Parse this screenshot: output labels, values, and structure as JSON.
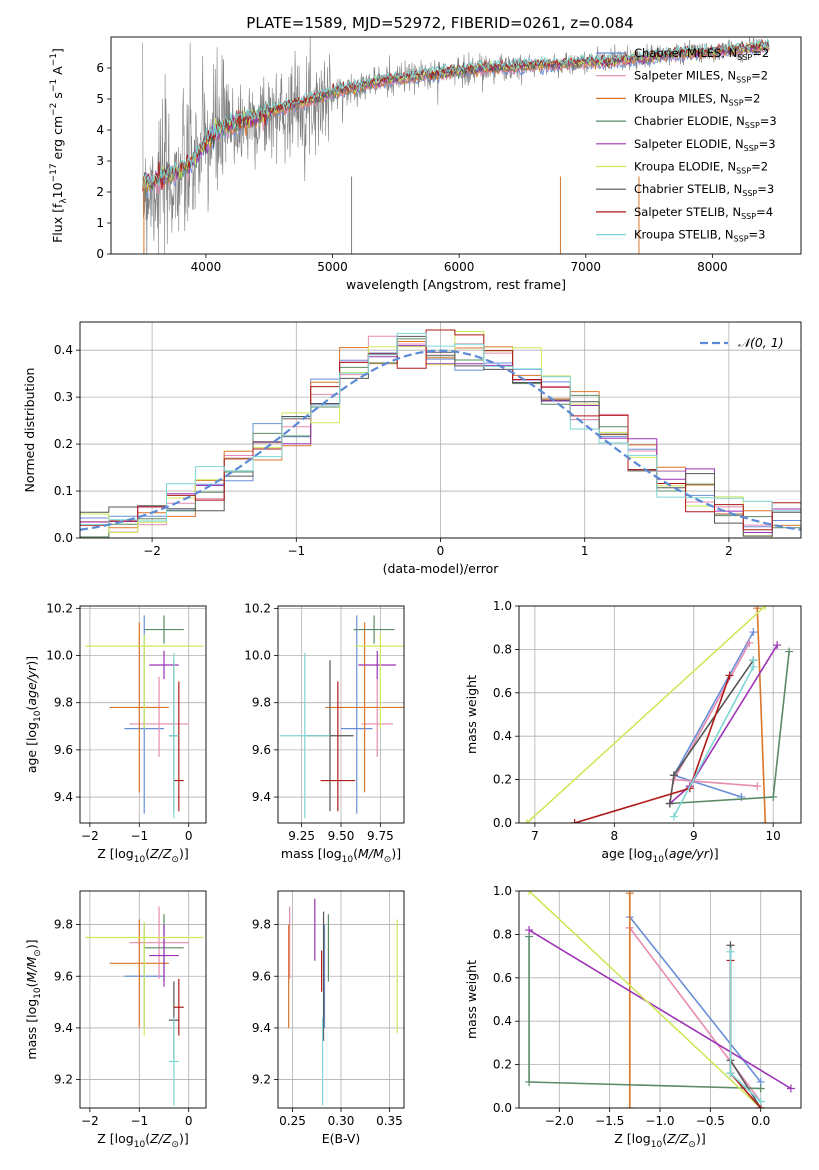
{
  "figure": {
    "title": "PLATE=1589, MJD=52972, FIBERID=0261, z=0.084",
    "colors": {
      "chabrier_miles": "#6a8fd8",
      "salpeter_miles": "#e58cb0",
      "kroupa_miles": "#d9762a",
      "chabrier_elodie": "#5a8a66",
      "salpeter_elodie": "#9d33b5",
      "kroupa_elodie": "#cfe85a",
      "chabrier_stelib": "#555555",
      "salpeter_stelib": "#b11a1a",
      "kroupa_stelib": "#7fd6d6",
      "data": "#808080",
      "normal": "#5b8ad6"
    }
  },
  "legend_spectrum": [
    {
      "label": "Chabrier MILES, N",
      "sub": "SSP",
      "tail": "=2",
      "color": "#6a8fd8"
    },
    {
      "label": "Salpeter MILES, N",
      "sub": "SSP",
      "tail": "=2",
      "color": "#e58cb0"
    },
    {
      "label": "Kroupa MILES, N",
      "sub": "SSP",
      "tail": "=2",
      "color": "#d9762a"
    },
    {
      "label": "Chabrier ELODIE, N",
      "sub": "SSP",
      "tail": "=3",
      "color": "#5a8a66"
    },
    {
      "label": "Salpeter ELODIE, N",
      "sub": "SSP",
      "tail": "=3",
      "color": "#9d33b5"
    },
    {
      "label": "Kroupa ELODIE, N",
      "sub": "SSP",
      "tail": "=2",
      "color": "#cfe85a"
    },
    {
      "label": "Chabrier STELIB, N",
      "sub": "SSP",
      "tail": "=3",
      "color": "#555555"
    },
    {
      "label": "Salpeter STELIB, N",
      "sub": "SSP",
      "tail": "=4",
      "color": "#b11a1a"
    },
    {
      "label": "Kroupa STELIB, N",
      "sub": "SSP",
      "tail": "=3",
      "color": "#7fd6d6"
    }
  ],
  "legend_hist": {
    "label": "𝒩(0, 1)"
  },
  "chart_data": [
    {
      "id": "spectrum",
      "type": "line",
      "xlabel": "wavelength [Angstrom, rest frame]",
      "ylabel": "Flux [f_λ 10^-17 erg cm^-2 s^-1 A^-1]",
      "xlim": [
        3250,
        8700
      ],
      "ylim": [
        0,
        7
      ],
      "xticks": [
        4000,
        5000,
        6000,
        7000,
        8000
      ],
      "yticks": [
        0,
        1,
        2,
        3,
        4,
        5,
        6
      ],
      "grid": false,
      "legend": "right",
      "series": [
        {
          "name": "data",
          "x": [
            3500,
            3700,
            3900,
            4000,
            4100,
            4300,
            4500,
            4700,
            4860,
            5000,
            5200,
            5400,
            5600,
            5800,
            6000,
            6200,
            6400,
            6600,
            6800,
            7000,
            7200,
            7400,
            7600,
            7800,
            8000,
            8200,
            8400
          ],
          "y": [
            2.1,
            2.3,
            2.9,
            3.6,
            3.9,
            4.2,
            4.5,
            4.8,
            4.9,
            5.2,
            5.4,
            5.6,
            5.7,
            5.8,
            5.9,
            6.0,
            6.0,
            6.1,
            6.1,
            6.2,
            6.3,
            6.3,
            6.4,
            6.5,
            6.5,
            6.6,
            6.7
          ]
        },
        {
          "name": "model",
          "x": [
            3500,
            3700,
            3900,
            4000,
            4100,
            4300,
            4500,
            4700,
            4860,
            5000,
            5200,
            5400,
            5600,
            5800,
            6000,
            6200,
            6400,
            6600,
            6800,
            7000,
            7200,
            7400,
            7600,
            7800,
            8000,
            8200,
            8400
          ],
          "y": [
            2.2,
            2.5,
            3.0,
            3.6,
            4.0,
            4.3,
            4.6,
            4.8,
            5.0,
            5.2,
            5.4,
            5.6,
            5.7,
            5.8,
            5.9,
            6.0,
            6.0,
            6.1,
            6.1,
            6.2,
            6.2,
            6.3,
            6.4,
            6.5,
            6.5,
            6.6,
            6.7
          ]
        }
      ]
    },
    {
      "id": "histogram",
      "type": "bar",
      "xlabel": "(data-model)/error",
      "ylabel": "Normed distribution",
      "xlim": [
        -2.5,
        2.5
      ],
      "ylim": [
        0,
        0.46
      ],
      "xticks": [
        -2,
        -1,
        0,
        1,
        2
      ],
      "yticks": [
        0.0,
        0.1,
        0.2,
        0.3,
        0.4
      ],
      "grid": true,
      "legend": "top-right",
      "bin_edges": [
        -2.5,
        -2.3,
        -2.1,
        -1.9,
        -1.7,
        -1.5,
        -1.3,
        -1.1,
        -0.9,
        -0.7,
        -0.5,
        -0.3,
        -0.1,
        0.1,
        0.3,
        0.5,
        0.7,
        0.9,
        1.1,
        1.3,
        1.5,
        1.7,
        1.9,
        2.1,
        2.3,
        2.5
      ],
      "values": [
        0.03,
        0.04,
        0.06,
        0.08,
        0.11,
        0.15,
        0.2,
        0.24,
        0.3,
        0.36,
        0.4,
        0.42,
        0.4,
        0.4,
        0.38,
        0.34,
        0.32,
        0.27,
        0.22,
        0.17,
        0.12,
        0.09,
        0.06,
        0.04,
        0.03
      ],
      "normal_curve": true
    },
    {
      "id": "age_vs_Z",
      "type": "scatter",
      "xlabel": "Z [log10(Z/Z☉)]",
      "ylabel": "age [log10(age/yr)]",
      "xlim": [
        -2.2,
        0.35
      ],
      "ylim": [
        9.29,
        10.21
      ],
      "xticks": [
        -2,
        -1,
        0
      ],
      "yticks": [
        9.4,
        9.6,
        9.8,
        10.0,
        10.2
      ],
      "grid": true,
      "points": [
        {
          "x": -0.9,
          "y": 9.69,
          "xerr": 0.4,
          "yerr": [
            0.36,
            0.48
          ],
          "series": "Chabrier MILES"
        },
        {
          "x": -0.6,
          "y": 9.71,
          "xerr": 0.6,
          "yerr": [
            0.14,
            0.2
          ],
          "series": "Salpeter MILES"
        },
        {
          "x": -1.0,
          "y": 9.78,
          "xerr": 0.6,
          "yerr": [
            0.36,
            0.36
          ],
          "series": "Kroupa MILES"
        },
        {
          "x": -0.5,
          "y": 10.11,
          "xerr": 0.4,
          "yerr": [
            0.06,
            0.06
          ],
          "series": "Chabrier ELODIE"
        },
        {
          "x": -0.5,
          "y": 9.96,
          "xerr": 0.3,
          "yerr": [
            0.06,
            0.06
          ],
          "series": "Salpeter ELODIE"
        },
        {
          "x": -0.9,
          "y": 10.04,
          "xerr": 1.2,
          "yerr": [
            0.35,
            0.05
          ],
          "series": "Kroupa ELODIE"
        },
        {
          "x": -0.3,
          "y": 9.66,
          "xerr": 0.1,
          "yerr": [
            0.32,
            0.32
          ],
          "series": "Chabrier STELIB"
        },
        {
          "x": -0.2,
          "y": 9.47,
          "xerr": 0.1,
          "yerr": [
            0.13,
            0.42
          ],
          "series": "Salpeter STELIB"
        },
        {
          "x": -0.3,
          "y": 9.66,
          "xerr": 0.1,
          "yerr": [
            0.35,
            0.35
          ],
          "series": "Kroupa STELIB"
        }
      ]
    },
    {
      "id": "age_vs_mass",
      "type": "scatter",
      "xlabel": "mass [log10(M/M☉)]",
      "ylabel": "",
      "xlim": [
        9.1,
        9.9
      ],
      "ylim": [
        9.29,
        10.21
      ],
      "xticks": [
        9.25,
        9.5,
        9.75
      ],
      "yticks": [
        9.4,
        9.6,
        9.8,
        10.0,
        10.2
      ],
      "grid": true,
      "points": [
        {
          "x": 9.6,
          "y": 9.69,
          "xerr": 0.1,
          "yerr": [
            0.36,
            0.48
          ],
          "series": "Chabrier MILES"
        },
        {
          "x": 9.73,
          "y": 9.71,
          "xerr": 0.1,
          "yerr": [
            0.14,
            0.2
          ],
          "series": "Salpeter MILES"
        },
        {
          "x": 9.65,
          "y": 9.78,
          "xerr": 0.25,
          "yerr": [
            0.36,
            0.36
          ],
          "series": "Kroupa MILES"
        },
        {
          "x": 9.71,
          "y": 10.11,
          "xerr": 0.13,
          "yerr": [
            0.06,
            0.06
          ],
          "series": "Chabrier ELODIE"
        },
        {
          "x": 9.73,
          "y": 9.96,
          "xerr": 0.12,
          "yerr": [
            0.06,
            0.06
          ],
          "series": "Salpeter ELODIE"
        },
        {
          "x": 9.75,
          "y": 10.04,
          "xerr": 0.16,
          "yerr": [
            0.35,
            0.05
          ],
          "series": "Kroupa ELODIE"
        },
        {
          "x": 9.43,
          "y": 9.66,
          "xerr": 0.15,
          "yerr": [
            0.32,
            0.32
          ],
          "series": "Chabrier STELIB"
        },
        {
          "x": 9.48,
          "y": 9.47,
          "xerr": 0.11,
          "yerr": [
            0.13,
            0.42
          ],
          "series": "Salpeter STELIB"
        },
        {
          "x": 9.27,
          "y": 9.66,
          "xerr": 0.16,
          "yerr": [
            0.35,
            0.35
          ],
          "series": "Kroupa STELIB"
        }
      ]
    },
    {
      "id": "mass_weight_vs_age",
      "type": "line",
      "xlabel": "age [log10(age/yr)]",
      "ylabel": "mass weight",
      "xlim": [
        6.8,
        10.35
      ],
      "ylim": [
        0,
        1
      ],
      "xticks": [
        7,
        8,
        9,
        10
      ],
      "yticks": [
        0.0,
        0.2,
        0.4,
        0.6,
        0.8,
        1.0
      ],
      "grid": true,
      "series": [
        {
          "name": "Chabrier MILES",
          "x": [
            9.6,
            8.75,
            9.75
          ],
          "y": [
            0.12,
            0.22,
            0.88
          ]
        },
        {
          "name": "Salpeter MILES",
          "x": [
            9.8,
            8.75,
            9.7
          ],
          "y": [
            0.17,
            0.2,
            0.83
          ]
        },
        {
          "name": "Kroupa MILES",
          "x": [
            9.9,
            9.8
          ],
          "y": [
            0.0,
            0.99
          ]
        },
        {
          "name": "Chabrier ELODIE",
          "x": [
            8.7,
            10.0,
            10.2
          ],
          "y": [
            0.09,
            0.12,
            0.79
          ]
        },
        {
          "name": "Salpeter ELODIE",
          "x": [
            8.7,
            8.95,
            10.05
          ],
          "y": [
            0.09,
            0.17,
            0.82
          ]
        },
        {
          "name": "Kroupa ELODIE",
          "x": [
            6.9,
            9.9
          ],
          "y": [
            0.0,
            1.0
          ]
        },
        {
          "name": "Chabrier STELIB",
          "x": [
            8.7,
            8.75,
            9.75
          ],
          "y": [
            0.09,
            0.22,
            0.75
          ]
        },
        {
          "name": "Salpeter STELIB",
          "x": [
            7.5,
            8.95,
            9.45
          ],
          "y": [
            0.0,
            0.16,
            0.68
          ]
        },
        {
          "name": "Kroupa STELIB",
          "x": [
            8.75,
            9.75,
            9.75
          ],
          "y": [
            0.03,
            0.72,
            0.75
          ]
        }
      ]
    },
    {
      "id": "mass_vs_Z",
      "type": "scatter",
      "xlabel": "Z [log10(Z/Z☉)]",
      "ylabel": "mass [log10(M/M☉)]",
      "xlim": [
        -2.2,
        0.35
      ],
      "ylim": [
        9.09,
        9.93
      ],
      "xticks": [
        -2,
        -1,
        0
      ],
      "yticks": [
        9.2,
        9.4,
        9.6,
        9.8
      ],
      "grid": true,
      "points": [
        {
          "x": -0.9,
          "y": 9.6,
          "xerr": 0.4,
          "yerr": [
            0.2,
            0.2
          ],
          "series": "Chabrier MILES"
        },
        {
          "x": -0.6,
          "y": 9.73,
          "xerr": 0.6,
          "yerr": [
            0.14,
            0.14
          ],
          "series": "Salpeter MILES"
        },
        {
          "x": -1.0,
          "y": 9.65,
          "xerr": 0.6,
          "yerr": [
            0.25,
            0.17
          ],
          "series": "Kroupa MILES"
        },
        {
          "x": -0.5,
          "y": 9.71,
          "xerr": 0.4,
          "yerr": [
            0.13,
            0.13
          ],
          "series": "Chabrier ELODIE"
        },
        {
          "x": -0.5,
          "y": 9.68,
          "xerr": 0.3,
          "yerr": [
            0.12,
            0.12
          ],
          "series": "Salpeter ELODIE"
        },
        {
          "x": -0.9,
          "y": 9.75,
          "xerr": 1.2,
          "yerr": [
            0.38,
            0.06
          ],
          "series": "Kroupa ELODIE"
        },
        {
          "x": -0.3,
          "y": 9.43,
          "xerr": 0.1,
          "yerr": [
            0.15,
            0.15
          ],
          "series": "Chabrier STELIB"
        },
        {
          "x": -0.2,
          "y": 9.48,
          "xerr": 0.1,
          "yerr": [
            0.11,
            0.11
          ],
          "series": "Salpeter STELIB"
        },
        {
          "x": -0.3,
          "y": 9.27,
          "xerr": 0.1,
          "yerr": [
            0.17,
            0.17
          ],
          "series": "Kroupa STELIB"
        }
      ]
    },
    {
      "id": "mass_vs_EBV",
      "type": "scatter",
      "xlabel": "E(B-V)",
      "ylabel": "",
      "xlim": [
        0.235,
        0.365
      ],
      "ylim": [
        9.09,
        9.93
      ],
      "xticks": [
        0.25,
        0.3,
        0.35
      ],
      "yticks": [
        9.2,
        9.4,
        9.6,
        9.8
      ],
      "grid": true,
      "points": [
        {
          "x": 0.283,
          "y": 9.6,
          "yerr": [
            0.2,
            0.2
          ],
          "series": "Chabrier MILES"
        },
        {
          "x": 0.247,
          "y": 9.73,
          "yerr": [
            0.14,
            0.14
          ],
          "series": "Salpeter MILES"
        },
        {
          "x": 0.246,
          "y": 9.6,
          "yerr": [
            0.2,
            0.2
          ],
          "series": "Kroupa MILES"
        },
        {
          "x": 0.287,
          "y": 9.71,
          "yerr": [
            0.13,
            0.13
          ],
          "series": "Chabrier ELODIE"
        },
        {
          "x": 0.273,
          "y": 9.78,
          "yerr": [
            0.12,
            0.12
          ],
          "series": "Salpeter ELODIE"
        },
        {
          "x": 0.358,
          "y": 9.6,
          "yerr": [
            0.22,
            0.22
          ],
          "series": "Kroupa ELODIE"
        },
        {
          "x": 0.282,
          "y": 9.6,
          "yerr": [
            0.25,
            0.25
          ],
          "series": "Chabrier STELIB"
        },
        {
          "x": 0.28,
          "y": 9.62,
          "yerr": [
            0.08,
            0.08
          ],
          "series": "Salpeter STELIB"
        },
        {
          "x": 0.281,
          "y": 9.27,
          "yerr": [
            0.17,
            0.17
          ],
          "series": "Kroupa STELIB"
        }
      ]
    },
    {
      "id": "mass_weight_vs_Z",
      "type": "line",
      "xlabel": "Z [log10(Z/Z☉)]",
      "ylabel": "mass weight",
      "xlim": [
        -2.4,
        0.4
      ],
      "ylim": [
        0,
        1
      ],
      "xticks": [
        -2.0,
        -1.5,
        -1.0,
        -0.5,
        0.0
      ],
      "yticks": [
        0.0,
        0.2,
        0.4,
        0.6,
        0.8,
        1.0
      ],
      "grid": true,
      "series": [
        {
          "name": "Chabrier MILES",
          "x": [
            -1.3,
            0.0
          ],
          "y": [
            0.88,
            0.12
          ]
        },
        {
          "name": "Salpeter MILES",
          "x": [
            -1.3,
            0.0
          ],
          "y": [
            0.83,
            0.03
          ]
        },
        {
          "name": "Kroupa MILES",
          "x": [
            -1.3,
            -1.3
          ],
          "y": [
            0.0,
            0.99
          ]
        },
        {
          "name": "Chabrier ELODIE",
          "x": [
            -2.3,
            -2.3,
            0.0
          ],
          "y": [
            0.79,
            0.12,
            0.09
          ]
        },
        {
          "name": "Salpeter ELODIE",
          "x": [
            -2.3,
            0.3
          ],
          "y": [
            0.82,
            0.09
          ]
        },
        {
          "name": "Kroupa ELODIE",
          "x": [
            -2.3,
            0.0
          ],
          "y": [
            1.0,
            0.0
          ]
        },
        {
          "name": "Chabrier STELIB",
          "x": [
            -0.3,
            -0.3,
            0.0
          ],
          "y": [
            0.75,
            0.22,
            0.0
          ]
        },
        {
          "name": "Salpeter STELIB",
          "x": [
            -0.3,
            -0.3,
            0.0
          ],
          "y": [
            0.68,
            0.16,
            0.0
          ]
        },
        {
          "name": "Kroupa STELIB",
          "x": [
            -0.3,
            -0.3,
            0.0
          ],
          "y": [
            0.72,
            0.16,
            0.03
          ]
        }
      ]
    }
  ]
}
